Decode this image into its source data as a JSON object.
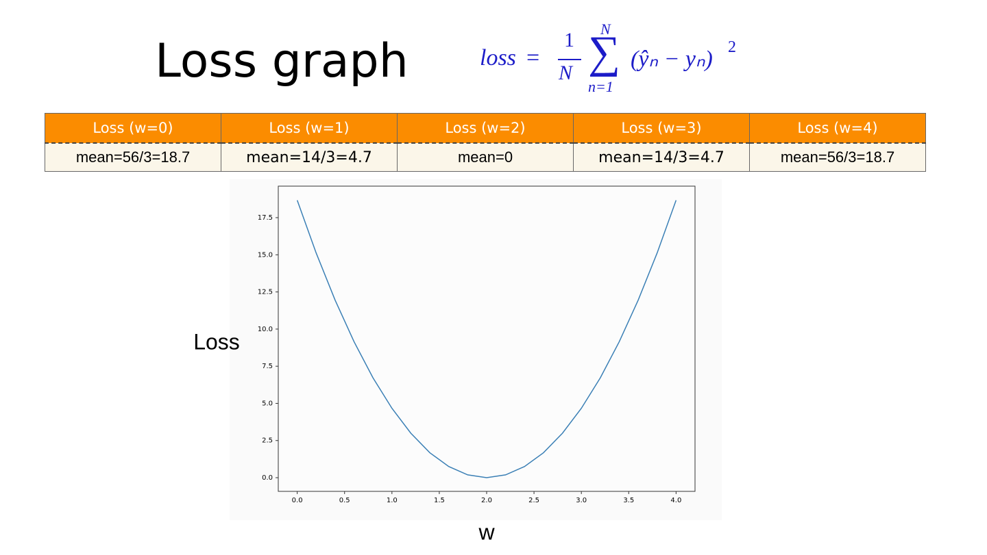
{
  "title": "Loss graph",
  "formula": {
    "lhs": "loss",
    "equals": "=",
    "numerator": "1",
    "denominator": "N",
    "sum_symbol": "∑",
    "sum_upper": "N",
    "sum_lower": "n=1",
    "term": "(ŷₙ − yₙ)",
    "exponent": "2"
  },
  "table": {
    "header": [
      "Loss (w=0)",
      "Loss (w=1)",
      "Loss (w=2)",
      "Loss (w=3)",
      "Loss (w=4)"
    ],
    "rows": [
      [
        "mean=56/3=18.7",
        "mean=14/3=4.7",
        "mean=0",
        "mean=14/3=4.7",
        "mean=56/3=18.7"
      ]
    ]
  },
  "chart_data": {
    "type": "line",
    "y_label": "Loss",
    "x_label": "w",
    "x": [
      0,
      0.2,
      0.4,
      0.6,
      0.8,
      1.0,
      1.2,
      1.4,
      1.6,
      1.8,
      2.0,
      2.2,
      2.4,
      2.6,
      2.8,
      3.0,
      3.2,
      3.4,
      3.6,
      3.8,
      4.0
    ],
    "values": [
      18.67,
      15.12,
      11.95,
      9.15,
      6.72,
      4.67,
      2.99,
      1.68,
      0.75,
      0.19,
      0,
      0.19,
      0.75,
      1.68,
      2.99,
      4.67,
      6.72,
      9.15,
      11.95,
      15.12,
      18.67
    ],
    "color": "#3a7fb5",
    "xlim": [
      -0.2,
      4.2
    ],
    "ylim": [
      -0.92,
      19.62
    ],
    "xticks": [
      {
        "value": 0,
        "label": "0.0"
      },
      {
        "value": 0.5,
        "label": "0.5"
      },
      {
        "value": 1,
        "label": "1.0"
      },
      {
        "value": 1.5,
        "label": "1.5"
      },
      {
        "value": 2,
        "label": "2.0"
      },
      {
        "value": 2.5,
        "label": "2.5"
      },
      {
        "value": 3,
        "label": "3.0"
      },
      {
        "value": 3.5,
        "label": "3.5"
      },
      {
        "value": 4,
        "label": "4.0"
      }
    ],
    "yticks": [
      {
        "value": 0,
        "label": "0.0"
      },
      {
        "value": 2.5,
        "label": "2.5"
      },
      {
        "value": 5,
        "label": "5.0"
      },
      {
        "value": 7.5,
        "label": "7.5"
      },
      {
        "value": 10,
        "label": "10.0"
      },
      {
        "value": 12.5,
        "label": "12.5"
      },
      {
        "value": 15,
        "label": "15.0"
      },
      {
        "value": 17.5,
        "label": "17.5"
      }
    ]
  }
}
